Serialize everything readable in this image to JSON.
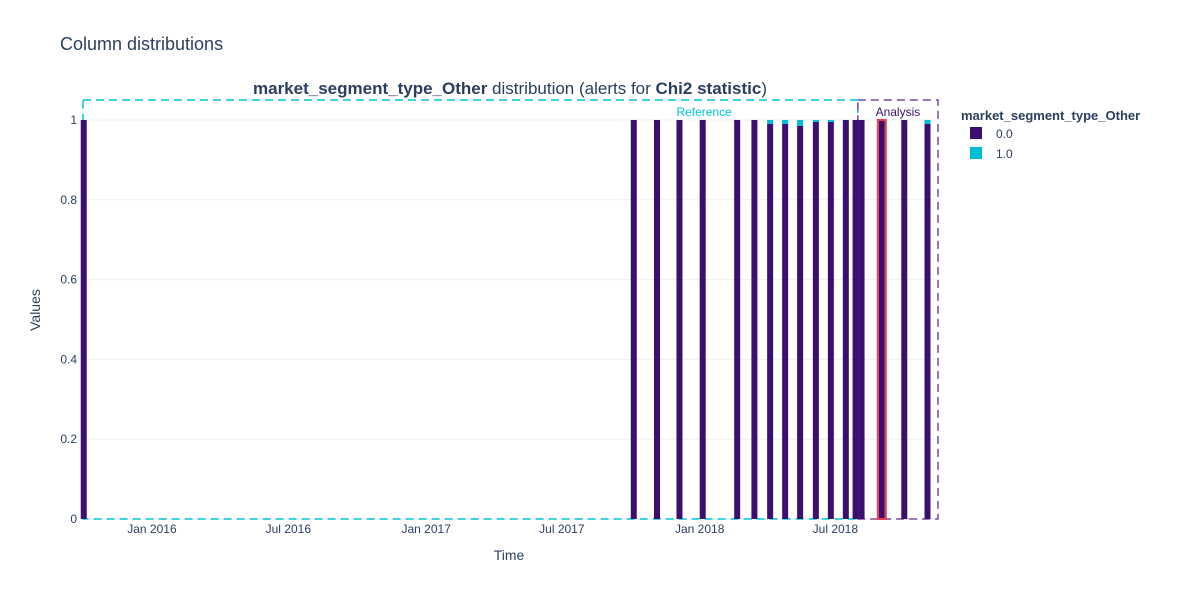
{
  "page_title": "Column distributions",
  "chart_data": {
    "type": "bar",
    "title_bold_1": "market_segment_type_Other",
    "title_mid": " distribution (alerts for ",
    "title_bold_2": "Chi2 statistic",
    "title_end": ")",
    "xlabel": "Time",
    "ylabel": "Values",
    "ylim": [
      0,
      1.05
    ],
    "y_ticks": [
      0,
      0.2,
      0.4,
      0.6,
      0.8,
      1
    ],
    "y_tick_labels": [
      "0",
      "0.2",
      "0.4",
      "0.6",
      "0.8",
      "1"
    ],
    "x_range": [
      "2015-10-01",
      "2018-11-15"
    ],
    "x_ticks": [
      "2016-01-01",
      "2016-07-01",
      "2017-01-01",
      "2017-07-01",
      "2018-01-01",
      "2018-07-01"
    ],
    "x_tick_labels": [
      "Jan 2016",
      "Jul 2016",
      "Jan 2017",
      "Jul 2017",
      "Jan 2018",
      "Jul 2018"
    ],
    "legend_title": "market_segment_type_Other",
    "legend_position": "right",
    "series": [
      {
        "name": "0.0",
        "color": "#3b0f70"
      },
      {
        "name": "1.0",
        "color": "#00bcd4"
      }
    ],
    "periods": [
      {
        "label": "Reference",
        "color": "#00c5d8",
        "start": "2015-10-01",
        "end": "2018-07-31"
      },
      {
        "label": "Analysis",
        "color": "#7a4a9c",
        "start": "2018-07-31",
        "end": "2018-11-15"
      }
    ],
    "alert_color": "#e8414a",
    "bars": [
      {
        "date": "2015-10-02",
        "value_0": 1.0,
        "value_1": 0.0,
        "period": "reference"
      },
      {
        "date": "2017-10-05",
        "value_0": 1.0,
        "value_1": 0.0,
        "period": "reference"
      },
      {
        "date": "2017-11-05",
        "value_0": 1.0,
        "value_1": 0.0,
        "period": "reference"
      },
      {
        "date": "2017-12-05",
        "value_0": 1.0,
        "value_1": 0.0,
        "period": "reference"
      },
      {
        "date": "2018-01-05",
        "value_0": 1.0,
        "value_1": 0.0,
        "period": "reference"
      },
      {
        "date": "2018-02-20",
        "value_0": 1.0,
        "value_1": 0.0,
        "period": "reference"
      },
      {
        "date": "2018-03-15",
        "value_0": 1.0,
        "value_1": 0.0,
        "period": "reference"
      },
      {
        "date": "2018-04-05",
        "value_0": 0.99,
        "value_1": 0.01,
        "period": "reference"
      },
      {
        "date": "2018-04-25",
        "value_0": 0.99,
        "value_1": 0.01,
        "period": "reference"
      },
      {
        "date": "2018-05-15",
        "value_0": 0.985,
        "value_1": 0.015,
        "period": "reference"
      },
      {
        "date": "2018-06-05",
        "value_0": 0.995,
        "value_1": 0.005,
        "period": "reference"
      },
      {
        "date": "2018-06-25",
        "value_0": 0.995,
        "value_1": 0.005,
        "period": "reference"
      },
      {
        "date": "2018-07-15",
        "value_0": 1.0,
        "value_1": 0.0,
        "period": "reference"
      },
      {
        "date": "2018-07-28",
        "value_0": 1.0,
        "value_1": 0.0,
        "period": "reference"
      },
      {
        "date": "2018-08-05",
        "value_0": 1.0,
        "value_1": 0.0,
        "period": "analysis"
      },
      {
        "date": "2018-09-01",
        "value_0": 1.0,
        "value_1": 0.0,
        "period": "analysis",
        "alert": true
      },
      {
        "date": "2018-10-01",
        "value_0": 1.0,
        "value_1": 0.0,
        "period": "analysis"
      },
      {
        "date": "2018-11-01",
        "value_0": 0.99,
        "value_1": 0.01,
        "period": "analysis"
      }
    ]
  }
}
